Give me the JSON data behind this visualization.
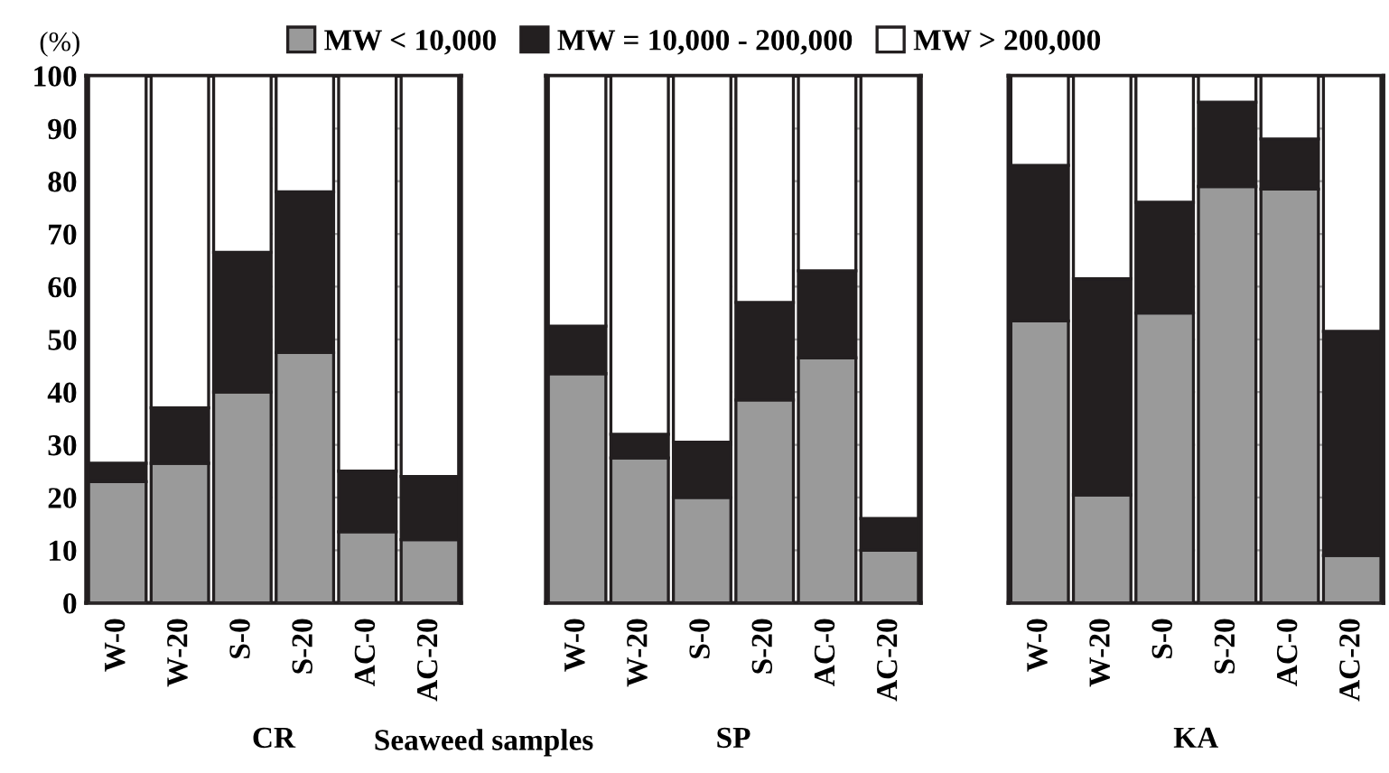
{
  "chart_data": [
    {
      "type": "bar",
      "stacked": true,
      "xlabel": "CR",
      "ylabel": "(%)",
      "categories": [
        "W-0",
        "W-20",
        "S-0",
        "S-20",
        "AC-0",
        "AC-20"
      ],
      "ylim": [
        0,
        100
      ],
      "yticks": [
        0,
        10,
        20,
        30,
        40,
        50,
        60,
        70,
        80,
        90,
        100
      ],
      "grid": "y",
      "legend": "top",
      "annotations": [
        "Seaweed samples"
      ],
      "series": [
        {
          "name": "MW < 10,000",
          "color": "#9a9a9a",
          "values": [
            23,
            26.5,
            40,
            47.5,
            13.5,
            12
          ]
        },
        {
          "name": "MW = 10,000 - 200,000",
          "color": "#231f20",
          "values": [
            3.5,
            10.5,
            26.5,
            30.5,
            11.5,
            12
          ]
        },
        {
          "name": "MW > 200,000",
          "color": "#ffffff",
          "values": [
            73.5,
            63,
            33.5,
            22,
            75,
            76
          ]
        }
      ]
    },
    {
      "type": "bar",
      "stacked": true,
      "xlabel": "SP",
      "categories": [
        "W-0",
        "W-20",
        "S-0",
        "S-20",
        "AC-0",
        "AC-20"
      ],
      "ylim": [
        0,
        100
      ],
      "yticks": [
        0,
        10,
        20,
        30,
        40,
        50,
        60,
        70,
        80,
        90,
        100
      ],
      "grid": "y",
      "tick_labels": "x",
      "series": [
        {
          "color": "#9a9a9a",
          "values": [
            43.5,
            27.5,
            20,
            38.5,
            46.5,
            10
          ]
        },
        {
          "color": "#231f20",
          "values": [
            9,
            4.5,
            10.5,
            18.5,
            16.5,
            6
          ]
        },
        {
          "color": "#ffffff",
          "values": [
            47.5,
            68,
            69.5,
            43,
            37,
            84
          ]
        }
      ]
    },
    {
      "type": "bar",
      "stacked": true,
      "xlabel": "KA",
      "categories": [
        "W-0",
        "W-20",
        "S-0",
        "S-20",
        "AC-0",
        "AC-20"
      ],
      "ylim": [
        0,
        100
      ],
      "yticks": [
        0,
        10,
        20,
        30,
        40,
        50,
        60,
        70,
        80,
        90,
        100
      ],
      "grid": "y",
      "tick_labels": "x",
      "series": [
        {
          "color": "#9a9a9a",
          "values": [
            53.5,
            20.5,
            55,
            79,
            78.5,
            9
          ]
        },
        {
          "color": "#231f20",
          "values": [
            29.5,
            41,
            21,
            16,
            9.5,
            42.5
          ]
        },
        {
          "color": "#ffffff",
          "values": [
            17,
            38.5,
            24,
            5,
            12,
            48.5
          ]
        }
      ]
    }
  ]
}
